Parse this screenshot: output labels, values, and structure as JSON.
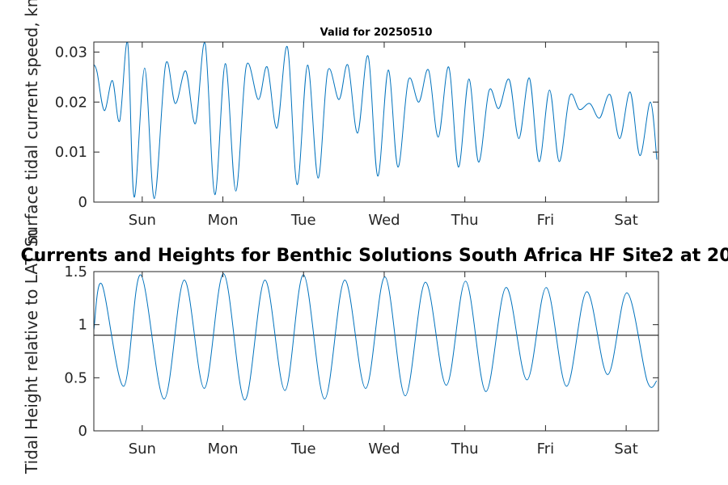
{
  "figure": {
    "title_top": "Valid for 20250510",
    "title_bottom": "Currents and Heights for Benthic Solutions South Africa HF Site2 at 20"
  },
  "chart_data": [
    {
      "type": "line",
      "ylabel": "Surface tidal current speed, kn",
      "ylim": [
        0,
        0.032
      ],
      "yticks": [
        0,
        0.01,
        0.02,
        0.03
      ],
      "ytick_labels": [
        "0",
        "0.01",
        "0.02",
        "0.03"
      ],
      "xlim": [
        0,
        7
      ],
      "xticks": [
        0.6,
        1.6,
        2.6,
        3.6,
        4.6,
        5.6,
        6.6
      ],
      "xtick_labels": [
        "Sun",
        "Mon",
        "Tue",
        "Wed",
        "Thu",
        "Fri",
        "Sat"
      ],
      "grid": false,
      "color": "#0072BD",
      "series": [
        {
          "x": [
            0.0,
            0.04,
            0.13,
            0.23,
            0.32,
            0.42,
            0.5,
            0.63,
            0.75,
            0.89,
            1.01,
            1.14,
            1.26,
            1.38,
            1.5,
            1.63,
            1.76,
            1.89,
            2.04,
            2.15,
            2.27,
            2.4,
            2.52,
            2.65,
            2.78,
            2.9,
            3.04,
            3.15,
            3.27,
            3.4,
            3.52,
            3.65,
            3.77,
            3.9,
            4.03,
            4.15,
            4.27,
            4.4,
            4.52,
            4.65,
            4.77,
            4.9,
            5.02,
            5.15,
            5.27,
            5.4,
            5.52,
            5.65,
            5.77,
            5.9,
            6.02,
            6.15,
            6.27,
            6.4,
            6.52,
            6.65,
            6.77,
            6.9,
            6.98
          ],
          "y": [
            0.0275,
            0.026,
            0.0183,
            0.0243,
            0.0162,
            0.0318,
            0.001,
            0.0268,
            0.0007,
            0.0275,
            0.0197,
            0.0262,
            0.0157,
            0.0317,
            0.0015,
            0.0277,
            0.0022,
            0.0272,
            0.0205,
            0.027,
            0.0148,
            0.031,
            0.0035,
            0.0274,
            0.0048,
            0.0262,
            0.0205,
            0.0274,
            0.0138,
            0.0292,
            0.0052,
            0.0264,
            0.007,
            0.0244,
            0.02,
            0.0264,
            0.013,
            0.027,
            0.007,
            0.0246,
            0.008,
            0.0223,
            0.0187,
            0.0245,
            0.0127,
            0.0248,
            0.0081,
            0.0224,
            0.0081,
            0.0212,
            0.0185,
            0.0197,
            0.0168,
            0.0215,
            0.0127,
            0.022,
            0.0093,
            0.02,
            0.0085
          ]
        }
      ]
    },
    {
      "type": "line",
      "ylabel": "Tidal Height relative to LAT, m",
      "ylim": [
        0,
        1.5
      ],
      "yticks": [
        0,
        0.5,
        1,
        1.5
      ],
      "ytick_labels": [
        "0",
        "0.5",
        "1",
        "1.5"
      ],
      "xlim": [
        0,
        7
      ],
      "xticks": [
        0.6,
        1.6,
        2.6,
        3.6,
        4.6,
        5.6,
        6.6
      ],
      "xtick_labels": [
        "Sun",
        "Mon",
        "Tue",
        "Wed",
        "Thu",
        "Fri",
        "Sat"
      ],
      "grid": false,
      "color": "#0072BD",
      "reference_line": 0.9,
      "reference_color": "#000000",
      "series": [
        {
          "x": [
            0.0,
            0.1,
            0.37,
            0.58,
            0.87,
            1.12,
            1.37,
            1.61,
            1.87,
            2.12,
            2.37,
            2.6,
            2.86,
            3.11,
            3.37,
            3.61,
            3.86,
            4.11,
            4.37,
            4.61,
            4.86,
            5.11,
            5.37,
            5.61,
            5.86,
            6.11,
            6.37,
            6.61,
            6.86,
            6.98
          ],
          "y": [
            0.95,
            1.38,
            0.42,
            1.47,
            0.3,
            1.42,
            0.4,
            1.48,
            0.29,
            1.42,
            0.38,
            1.47,
            0.3,
            1.42,
            0.4,
            1.45,
            0.33,
            1.4,
            0.43,
            1.41,
            0.37,
            1.35,
            0.48,
            1.35,
            0.42,
            1.31,
            0.53,
            1.3,
            0.47,
            0.47
          ]
        }
      ]
    }
  ]
}
